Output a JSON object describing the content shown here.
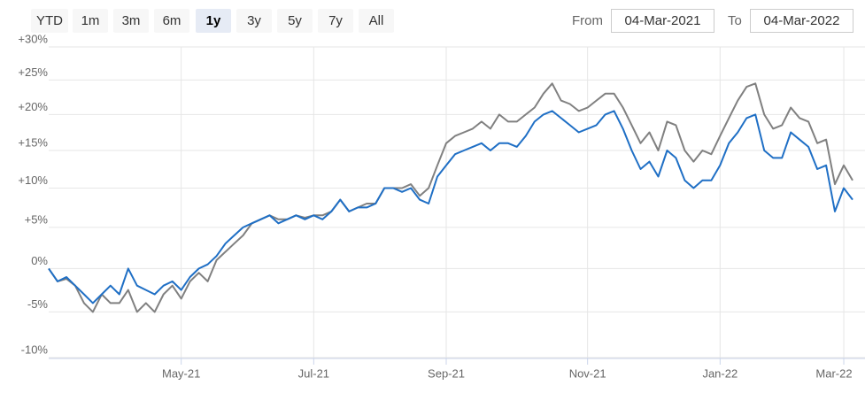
{
  "controls": {
    "range_buttons": [
      "YTD",
      "1m",
      "3m",
      "6m",
      "1y",
      "3y",
      "5y",
      "7y",
      "All"
    ],
    "selected": 4,
    "from_label": "From",
    "from_value": "04-Mar-2021",
    "to_label": "To",
    "to_value": "04-Mar-2022"
  },
  "chart_data": {
    "type": "line",
    "log_scale": true,
    "grid": true,
    "categories": [
      null,
      null,
      null,
      null,
      null,
      null,
      null,
      null,
      null,
      null,
      null,
      null,
      null,
      null,
      null,
      "May-21",
      null,
      null,
      null,
      null,
      null,
      null,
      null,
      null,
      null,
      null,
      null,
      null,
      null,
      null,
      "Jul-21",
      null,
      null,
      null,
      null,
      null,
      null,
      null,
      null,
      null,
      null,
      null,
      null,
      null,
      null,
      "Sep-21",
      null,
      null,
      null,
      null,
      null,
      null,
      null,
      null,
      null,
      null,
      null,
      null,
      null,
      null,
      null,
      "Nov-21",
      null,
      null,
      null,
      null,
      null,
      null,
      null,
      null,
      null,
      null,
      null,
      null,
      null,
      null,
      "Jan-22",
      null,
      null,
      null,
      null,
      null,
      null,
      null,
      null,
      null,
      null,
      null,
      null,
      null,
      "Mar-22",
      null
    ],
    "series": [
      {
        "color": "#1f6fc5",
        "values": [
          0,
          -1.5,
          -1,
          -2,
          -3,
          -4,
          -3,
          -2,
          -3,
          0,
          -2,
          -2.5,
          -3,
          -2,
          -1.5,
          -2.5,
          -1,
          0,
          0.5,
          1.5,
          3,
          4,
          5,
          5.5,
          6,
          6.5,
          5.5,
          6,
          6.5,
          6,
          6.5,
          6,
          7,
          8.5,
          7,
          7.5,
          7.5,
          8,
          10,
          10,
          9.5,
          10,
          8.5,
          8,
          11.5,
          13,
          14.5,
          15,
          15.5,
          16,
          15,
          16,
          16,
          15.5,
          17,
          19,
          20,
          20.5,
          19.5,
          18.5,
          17.5,
          18,
          18.5,
          20,
          20.5,
          18,
          15,
          12.5,
          13.5,
          11.5,
          15,
          14,
          11,
          10,
          11,
          11,
          13,
          16,
          17.5,
          19.5,
          20,
          15,
          14,
          14,
          17.5,
          16.5,
          15.5,
          12.5,
          13,
          7,
          10,
          8.5
        ]
      },
      {
        "color": "#808080",
        "values": [
          0,
          -1.5,
          -1.2,
          -2,
          -4,
          -5,
          -3,
          -4,
          -4,
          -2.5,
          -5,
          -4,
          -5,
          -3,
          -2,
          -3.5,
          -1.5,
          -0.5,
          -1.5,
          1,
          2,
          3,
          4,
          5.5,
          6,
          6.5,
          6,
          6,
          6.5,
          6.2,
          6.5,
          6.5,
          7,
          8.5,
          7,
          7.5,
          8,
          8,
          10,
          10,
          10,
          10.5,
          9,
          10,
          13,
          16,
          17,
          17.5,
          18,
          19,
          18,
          20,
          19,
          19,
          20,
          21,
          23,
          24.5,
          22,
          21.5,
          20.5,
          21,
          22,
          23,
          23,
          21,
          18.5,
          16,
          17.5,
          15,
          19,
          18.5,
          15,
          13.5,
          15,
          14.5,
          17,
          19.5,
          22,
          24,
          24.5,
          20,
          18,
          18.5,
          21,
          19.5,
          19,
          16,
          16.5,
          10.5,
          13,
          11
        ]
      }
    ],
    "ylim": [
      -10,
      30
    ],
    "yticks": [
      {
        "value": -10,
        "label": "-10%"
      },
      {
        "value": -5,
        "label": "-5%"
      },
      {
        "value": 0,
        "label": "0%"
      },
      {
        "value": 5,
        "label": "+5%"
      },
      {
        "value": 10,
        "label": "+10%"
      },
      {
        "value": 15,
        "label": "+15%"
      },
      {
        "value": 20,
        "label": "+20%"
      },
      {
        "value": 25,
        "label": "+25%"
      },
      {
        "value": 30,
        "label": "+30%"
      }
    ]
  }
}
